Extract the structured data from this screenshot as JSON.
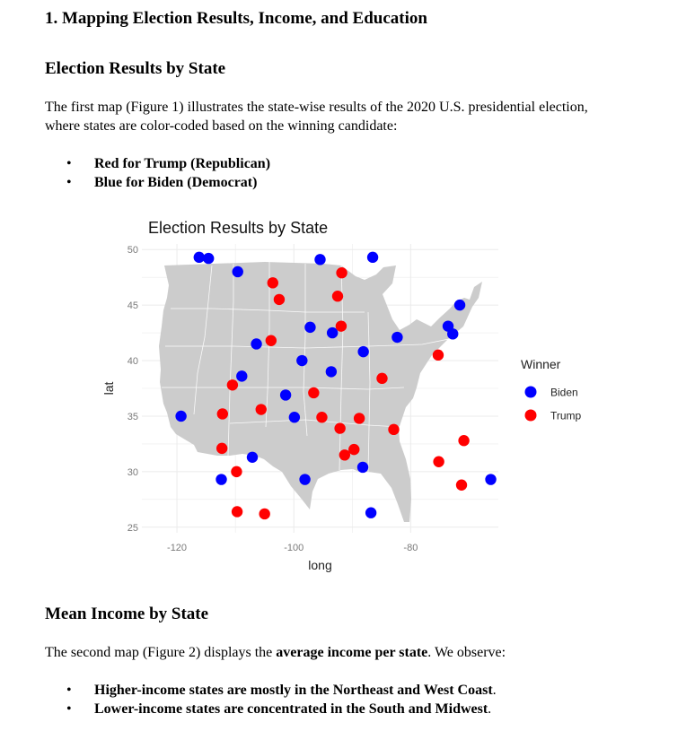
{
  "section1": {
    "heading": "1. Mapping Election Results, Income, and Education",
    "subheading": "Election Results by State",
    "para_line1": "The first map (Figure 1) illustrates the state-wise results of the 2020 U.S. presidential election,",
    "para_line2": "where states are color-coded based on the winning candidate:",
    "bullets": [
      "Red for Trump (Republican)",
      "Blue for Biden (Democrat)"
    ]
  },
  "section2": {
    "subheading": "Mean Income by State",
    "para_pre": "The second map (Figure 2) displays the ",
    "para_bold": "average income per state",
    "para_post": ". We observe:",
    "bullet1_bold": "Higher-income states are mostly in the Northeast and West Coast",
    "bullet1_tail": ".",
    "bullet2_bold": "Lower-income states are concentrated in the South and Midwest",
    "bullet2_tail": "."
  },
  "colors": {
    "biden": "#0000ff",
    "trump": "#ff0000",
    "land": "#cccccc",
    "grid": "#ebebeb"
  },
  "chart_data": {
    "type": "scatter",
    "title": "Election Results by State",
    "xlabel": "long",
    "ylabel": "lat",
    "xlim": [
      -126,
      -65
    ],
    "ylim": [
      24.5,
      50.5
    ],
    "x_ticks": [
      -120,
      -100,
      -80
    ],
    "y_ticks": [
      25,
      30,
      35,
      40,
      45,
      50
    ],
    "legend_title": "Winner",
    "legend_position": "right",
    "grid": true,
    "series": [
      {
        "name": "Biden",
        "color": "#0000ff",
        "points": [
          {
            "x": -116.2,
            "y": 49.3
          },
          {
            "x": -114.6,
            "y": 49.2
          },
          {
            "x": -109.6,
            "y": 48.0
          },
          {
            "x": -95.5,
            "y": 49.1
          },
          {
            "x": -86.5,
            "y": 49.3
          },
          {
            "x": -71.6,
            "y": 45.0
          },
          {
            "x": -97.2,
            "y": 43.0
          },
          {
            "x": -93.4,
            "y": 42.5
          },
          {
            "x": -73.6,
            "y": 43.1
          },
          {
            "x": -72.8,
            "y": 42.4
          },
          {
            "x": -82.3,
            "y": 42.1
          },
          {
            "x": -88.1,
            "y": 40.8
          },
          {
            "x": -106.4,
            "y": 41.5
          },
          {
            "x": -108.9,
            "y": 38.6
          },
          {
            "x": -98.6,
            "y": 40.0
          },
          {
            "x": -93.6,
            "y": 39.0
          },
          {
            "x": -101.4,
            "y": 36.9
          },
          {
            "x": -119.3,
            "y": 35.0
          },
          {
            "x": -99.9,
            "y": 34.9
          },
          {
            "x": -107.1,
            "y": 31.3
          },
          {
            "x": -112.4,
            "y": 29.3
          },
          {
            "x": -98.1,
            "y": 29.3
          },
          {
            "x": -88.2,
            "y": 30.4
          },
          {
            "x": -86.8,
            "y": 26.3
          },
          {
            "x": -66.3,
            "y": 29.3
          }
        ]
      },
      {
        "name": "Trump",
        "color": "#ff0000",
        "points": [
          {
            "x": -91.8,
            "y": 47.9
          },
          {
            "x": -103.6,
            "y": 47.0
          },
          {
            "x": -102.5,
            "y": 45.5
          },
          {
            "x": -92.5,
            "y": 45.8
          },
          {
            "x": -91.9,
            "y": 43.1
          },
          {
            "x": -103.9,
            "y": 41.8
          },
          {
            "x": -75.3,
            "y": 40.5
          },
          {
            "x": -84.9,
            "y": 38.4
          },
          {
            "x": -110.5,
            "y": 37.8
          },
          {
            "x": -96.6,
            "y": 37.1
          },
          {
            "x": -105.6,
            "y": 35.6
          },
          {
            "x": -112.2,
            "y": 35.2
          },
          {
            "x": -95.2,
            "y": 34.9
          },
          {
            "x": -88.8,
            "y": 34.8
          },
          {
            "x": -92.1,
            "y": 33.9
          },
          {
            "x": -82.9,
            "y": 33.8
          },
          {
            "x": -70.9,
            "y": 32.8
          },
          {
            "x": -112.3,
            "y": 32.1
          },
          {
            "x": -89.7,
            "y": 32.0
          },
          {
            "x": -91.3,
            "y": 31.5
          },
          {
            "x": -75.2,
            "y": 30.9
          },
          {
            "x": -109.8,
            "y": 30.0
          },
          {
            "x": -71.3,
            "y": 28.8
          },
          {
            "x": -109.7,
            "y": 26.4
          },
          {
            "x": -105.0,
            "y": 26.2
          }
        ]
      }
    ]
  }
}
